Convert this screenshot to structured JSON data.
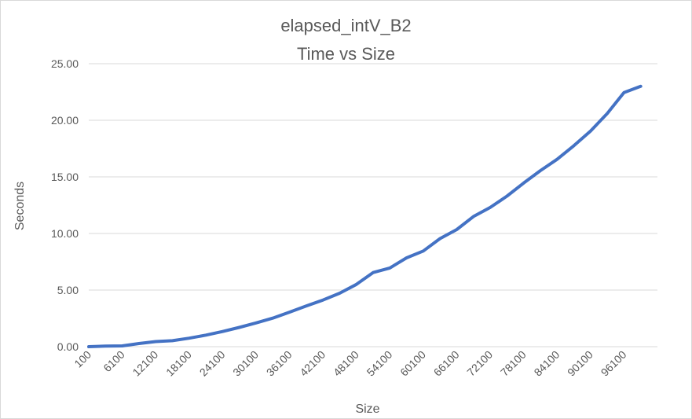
{
  "chart_data": {
    "type": "line",
    "title": "elapsed_intV_B2",
    "subtitle": "Time vs Size",
    "xlabel": "Size",
    "ylabel": "Seconds",
    "ylim": [
      0,
      25
    ],
    "yticks": [
      "0.00",
      "5.00",
      "10.00",
      "15.00",
      "20.00",
      "25.00"
    ],
    "x_tick_labels": [
      "100",
      "6100",
      "12100",
      "18100",
      "24100",
      "30100",
      "36100",
      "42100",
      "48100",
      "54100",
      "60100",
      "66100",
      "72100",
      "78100",
      "84100",
      "90100",
      "96100"
    ],
    "grid": true,
    "legend": "none",
    "series_color": "#4472c4",
    "x": [
      100,
      3100,
      6100,
      9100,
      12100,
      15100,
      18100,
      21100,
      24100,
      27100,
      30100,
      33100,
      36100,
      39100,
      42100,
      45100,
      48100,
      51100,
      54100,
      57100,
      60100,
      63100,
      66100,
      69100,
      72100,
      75100,
      78100,
      81100,
      84100,
      87100,
      90100,
      93100,
      96100,
      99100
    ],
    "values": [
      0.0,
      0.05,
      0.07,
      0.28,
      0.45,
      0.53,
      0.75,
      1.02,
      1.34,
      1.7,
      2.1,
      2.52,
      3.05,
      3.6,
      4.12,
      4.72,
      5.5,
      6.55,
      6.95,
      7.85,
      8.45,
      9.55,
      10.35,
      11.5,
      12.3,
      13.3,
      14.45,
      15.55,
      16.55,
      17.75,
      19.05,
      20.6,
      22.45,
      23.0
    ]
  }
}
